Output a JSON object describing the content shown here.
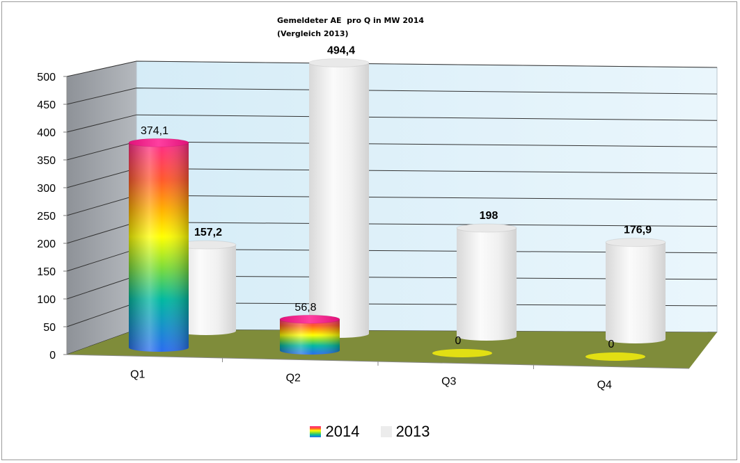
{
  "chart_data": {
    "type": "bar",
    "title": "Gemeldeter AE  pro Q in MW 2014",
    "subtitle": "(Vergleich 2013)",
    "categories": [
      "Q1",
      "Q2",
      "Q3",
      "Q4"
    ],
    "series": [
      {
        "name": "2014",
        "values": [
          374.1,
          56.8,
          0,
          0
        ],
        "labels": [
          "374,1",
          "56,8",
          "0",
          "0"
        ]
      },
      {
        "name": "2013",
        "values": [
          157.2,
          494.4,
          198,
          176.9
        ],
        "labels": [
          "157,2",
          "494,4",
          "198",
          "176,9"
        ]
      }
    ],
    "yticks": [
      "0",
      "50",
      "100",
      "150",
      "200",
      "250",
      "300",
      "350",
      "400",
      "450",
      "500"
    ],
    "ylim": [
      0,
      500
    ],
    "grid": true,
    "legend": "bottom",
    "style": "3d-cylinder",
    "colors": {
      "series_2014": "rainbow-gradient",
      "series_2013": "#f0f0f0",
      "floor": "#7f8c3a",
      "back_wall": "#dff0fa",
      "side_wall": "#a9adb2",
      "zero_marker": "#e2df13"
    }
  }
}
